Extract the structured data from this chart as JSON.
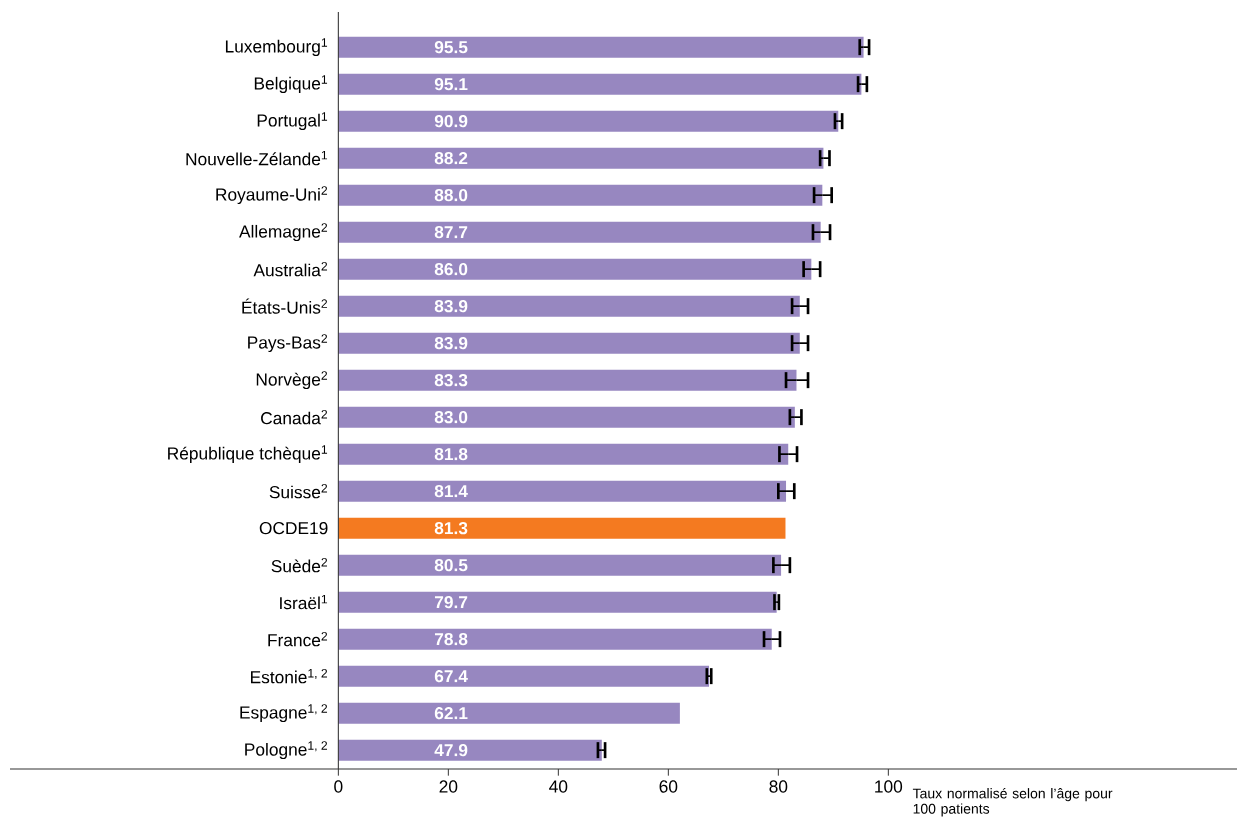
{
  "chart_data": {
    "type": "bar",
    "orientation": "horizontal",
    "categories": [
      "Luxembourg$^{1}$",
      "Belgique$^{1}$",
      "Portugal$^{1}$",
      "Nouvelle-Zélande$^{1}$",
      "Royaume-Uni$^{2}$",
      "Allemagne$^{2}$",
      "Australia$^{2}$",
      "États-Unis$^{2}$",
      "Pays-Bas$^{2}$",
      "Norvège$^{2}$",
      "Canada$^{2}$",
      "République tchèque$^{1}$",
      "Suisse$^{2}$",
      "OCDE19",
      "Suède$^{2}$",
      "Israël$^{1}$",
      "France$^{2}$",
      "Estonie$^{1, 2}$",
      "Espagne$^{1, 2}$",
      "Pologne$^{1, 2}$"
    ],
    "values": [
      95.5,
      95.1,
      90.9,
      88.2,
      88.0,
      87.7,
      86.0,
      83.9,
      83.9,
      83.3,
      83.0,
      81.8,
      81.4,
      81.3,
      80.5,
      79.7,
      78.8,
      67.4,
      62.1,
      47.9
    ],
    "colors": [
      "#9787c0",
      "#9787c0",
      "#9787c0",
      "#9787c0",
      "#9787c0",
      "#9787c0",
      "#9787c0",
      "#9787c0",
      "#9787c0",
      "#9787c0",
      "#9787c0",
      "#9787c0",
      "#9787c0",
      "#f47a20",
      "#9787c0",
      "#9787c0",
      "#9787c0",
      "#9787c0",
      "#9787c0",
      "#9787c0"
    ],
    "errors": [
      [
        94.8,
        96.5
      ],
      [
        94.5,
        96.1
      ],
      [
        90.3,
        91.6
      ],
      [
        87.6,
        89.3
      ],
      [
        86.5,
        89.7
      ],
      [
        86.3,
        89.4
      ],
      [
        84.6,
        87.6
      ],
      [
        82.5,
        85.4
      ],
      [
        82.5,
        85.4
      ],
      [
        81.4,
        85.4
      ],
      [
        82.1,
        84.2
      ],
      [
        80.2,
        83.4
      ],
      [
        80.0,
        82.9
      ],
      null,
      [
        79.1,
        82.1
      ],
      [
        79.3,
        80.1
      ],
      [
        77.4,
        80.3
      ],
      [
        67.0,
        67.8
      ],
      null,
      [
        47.2,
        48.5
      ]
    ],
    "value_labels": [
      "95.5",
      "95.1",
      "90.9",
      "88.2",
      "88.0",
      "87.7",
      "86.0",
      "83.9",
      "83.9",
      "83.3",
      "83.0",
      "81.8",
      "81.4",
      "81.3",
      "80.5",
      "79.7",
      "78.8",
      "67.4",
      "62.1",
      "47.9"
    ],
    "xlim": [
      -59.7,
      163.4
    ],
    "xticks": [
      0,
      20,
      40,
      60,
      80,
      100
    ],
    "xlabel": "Taux normalisé selon l’âge pour 100 patients"
  }
}
